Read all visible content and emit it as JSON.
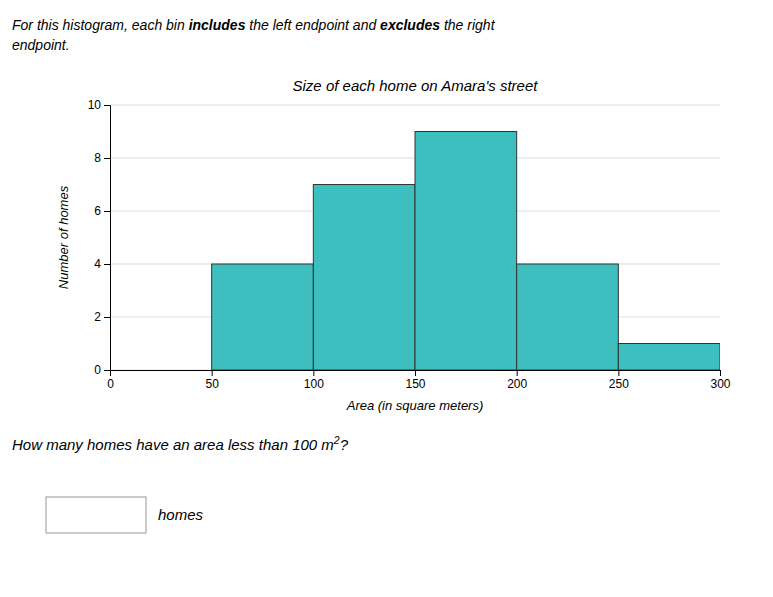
{
  "chart_data": {
    "type": "histogram",
    "title": "Size of each home on Amara's street",
    "x_label": "Area (in square meters)",
    "y_label": "Number of homes",
    "bins": [
      0,
      50,
      100,
      150,
      200,
      250,
      300
    ],
    "values": [
      0,
      4,
      7,
      9,
      4,
      1
    ],
    "color": "#3dbfc0",
    "xlim": [
      0,
      300
    ],
    "xticks": [
      0,
      50,
      100,
      150,
      200,
      250,
      300
    ],
    "ylim": [
      0,
      10
    ],
    "yticks": [
      0,
      2,
      4,
      6,
      8,
      10
    ],
    "grid": true,
    "annotations": [
      [
        "For this histogram, each bin ",
        "includes",
        " the left endpoint and ",
        "excludes",
        " the right"
      ],
      [
        "endpoint."
      ],
      [
        "How many homes have an area less than 100 m",
        "2",
        "?"
      ],
      [
        "homes"
      ]
    ]
  }
}
